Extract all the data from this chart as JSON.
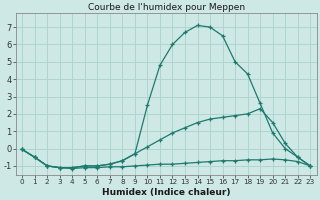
{
  "title": "Courbe de l'humidex pour Meppen",
  "xlabel": "Humidex (Indice chaleur)",
  "xlim_min": -0.5,
  "xlim_max": 23.5,
  "ylim_min": -1.5,
  "ylim_max": 7.8,
  "yticks": [
    -1,
    0,
    1,
    2,
    3,
    4,
    5,
    6,
    7
  ],
  "xticks": [
    0,
    1,
    2,
    3,
    4,
    5,
    6,
    7,
    8,
    9,
    10,
    11,
    12,
    13,
    14,
    15,
    16,
    17,
    18,
    19,
    20,
    21,
    22,
    23
  ],
  "bg_color": "#cde8e5",
  "line_color": "#1e7a6d",
  "grid_color": "#b0d4d0",
  "curve1_x": [
    0,
    1,
    2,
    3,
    4,
    5,
    6,
    7,
    8,
    9,
    10,
    11,
    12,
    13,
    14,
    15,
    16,
    17,
    18,
    19,
    20,
    21,
    22,
    23
  ],
  "curve1_y": [
    -0.05,
    -0.5,
    -1.0,
    -1.1,
    -1.15,
    -1.1,
    -1.1,
    -1.05,
    -1.05,
    -1.0,
    -0.95,
    -0.9,
    -0.9,
    -0.85,
    -0.8,
    -0.75,
    -0.7,
    -0.7,
    -0.65,
    -0.65,
    -0.6,
    -0.65,
    -0.75,
    -1.0
  ],
  "curve2_x": [
    0,
    1,
    2,
    3,
    4,
    5,
    6,
    7,
    8,
    9,
    10,
    11,
    12,
    13,
    14,
    15,
    16,
    17,
    18,
    19,
    20,
    21,
    22,
    23
  ],
  "curve2_y": [
    -0.05,
    -0.5,
    -1.0,
    -1.1,
    -1.1,
    -1.0,
    -1.0,
    -0.9,
    -0.7,
    -0.3,
    0.1,
    0.5,
    0.9,
    1.2,
    1.5,
    1.7,
    1.8,
    1.9,
    2.0,
    2.3,
    1.5,
    0.3,
    -0.5,
    -1.0
  ],
  "curve3_x": [
    0,
    1,
    2,
    3,
    4,
    5,
    6,
    7,
    8,
    9,
    10,
    11,
    12,
    13,
    14,
    15,
    16,
    17,
    18,
    19,
    20,
    21,
    22,
    23
  ],
  "curve3_y": [
    -0.05,
    -0.5,
    -1.0,
    -1.1,
    -1.1,
    -1.0,
    -1.0,
    -0.9,
    -0.7,
    -0.3,
    2.5,
    4.8,
    6.0,
    6.7,
    7.1,
    7.0,
    6.5,
    5.0,
    4.3,
    2.6,
    0.9,
    0.0,
    -0.5,
    -1.0
  ],
  "title_fontsize": 6.5,
  "xlabel_fontsize": 6.5,
  "tick_fontsize_x": 5.2,
  "tick_fontsize_y": 6.0
}
